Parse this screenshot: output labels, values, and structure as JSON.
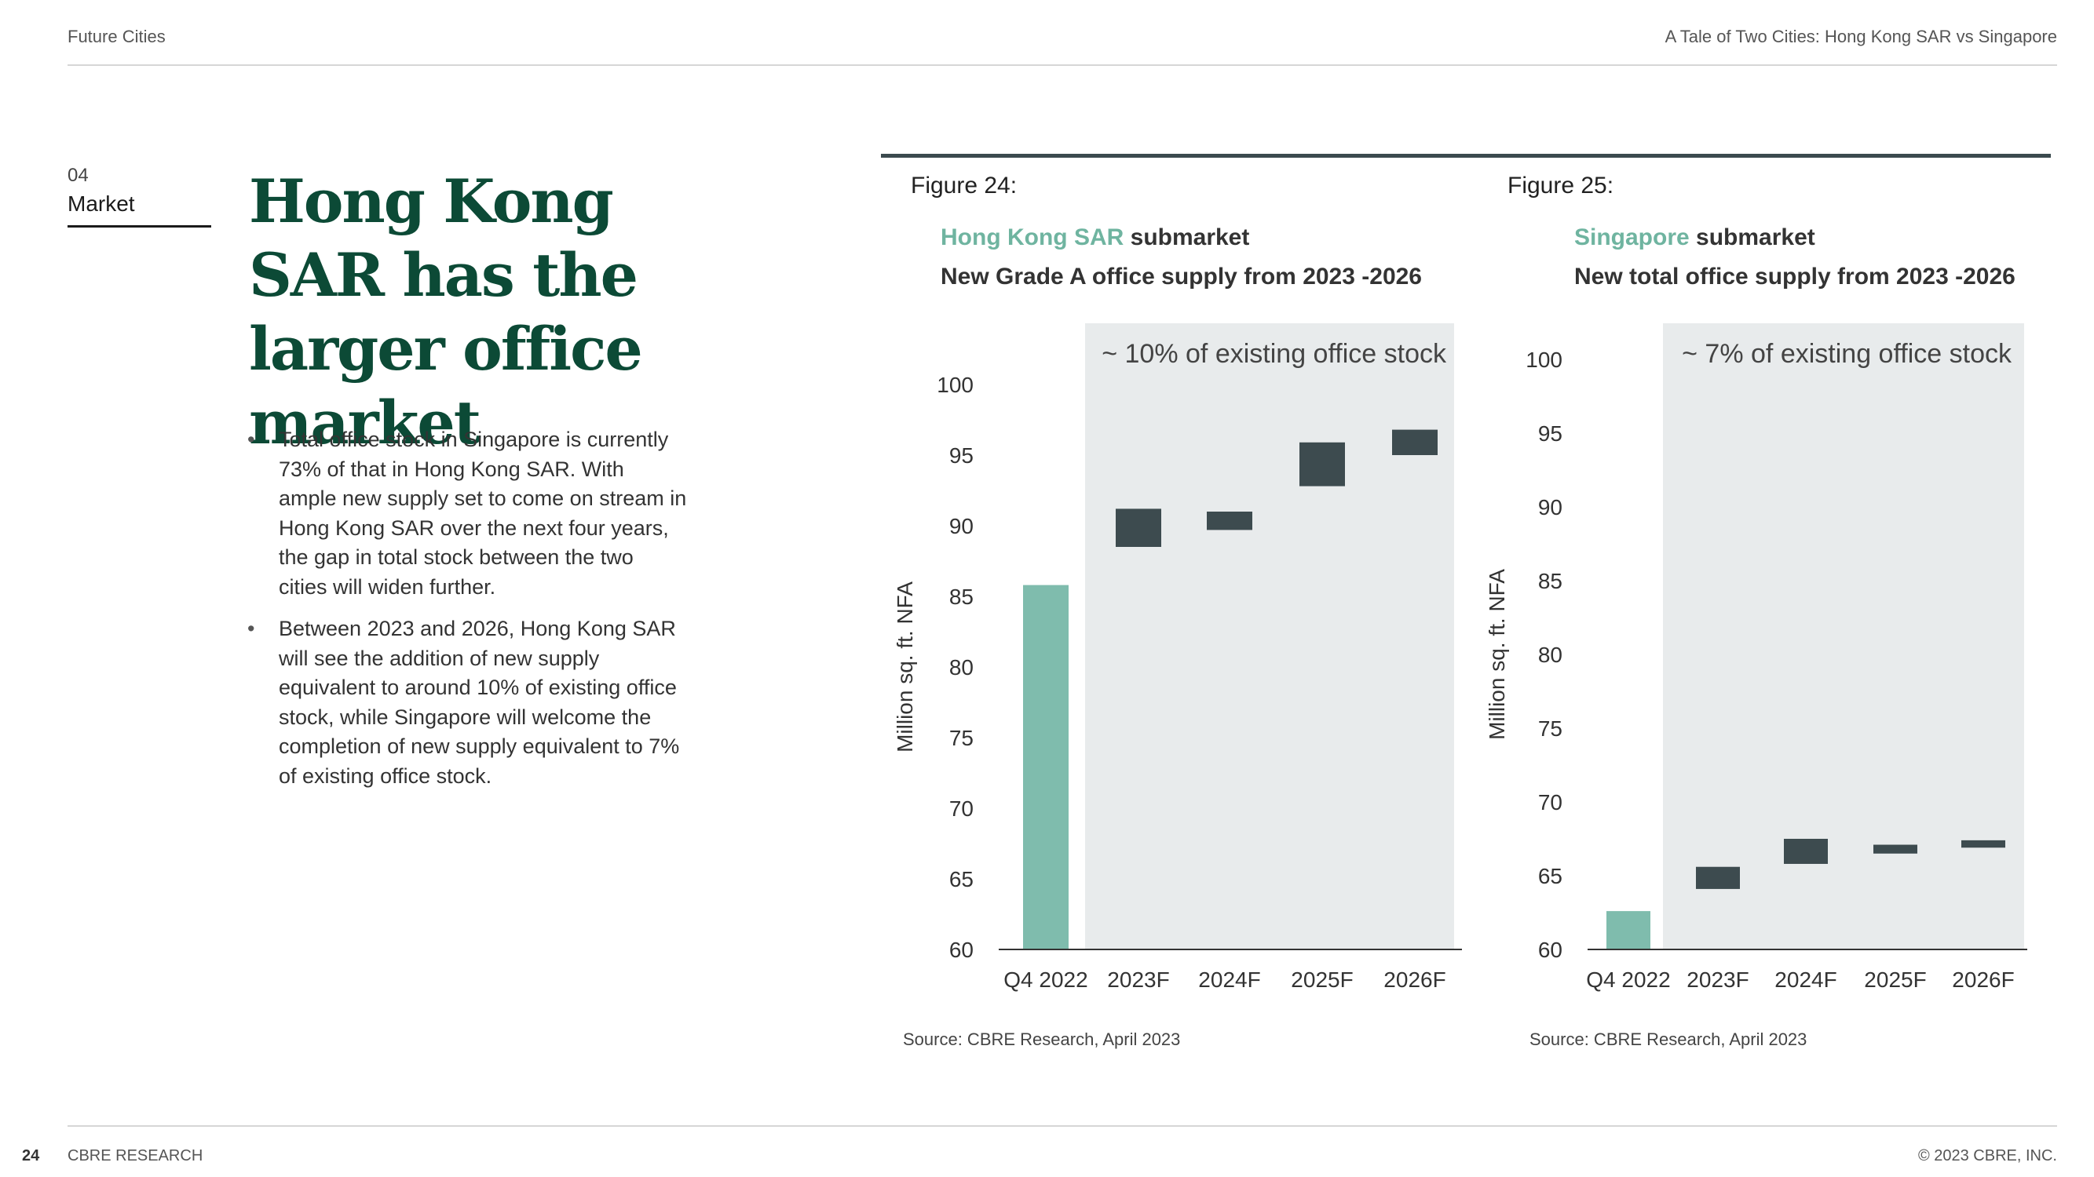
{
  "header": {
    "left": "Future Cities",
    "right": "A Tale of Two Cities: Hong Kong SAR vs Singapore"
  },
  "section": {
    "number": "04",
    "name": "Market"
  },
  "headline": "Hong Kong SAR has the larger office market",
  "bullets": [
    "Total office stock in Singapore is currently 73% of that in Hong Kong SAR. With ample new supply set to come on stream in Hong Kong SAR over the next four years, the gap in total stock between the two cities will widen further.",
    "Between 2023 and 2026, Hong Kong SAR will see the addition of new supply equivalent to around 10% of existing office stock, while Singapore will welcome the completion of new supply equivalent to 7% of existing office stock."
  ],
  "figures": [
    {
      "label": "Figure 24:",
      "subtitle_accent": "Hong Kong SAR",
      "subtitle_rest": " submarket",
      "subtitle2": "New Grade A office supply from 2023 -2026",
      "source": "Source: CBRE Research, April 2023"
    },
    {
      "label": "Figure 25:",
      "subtitle_accent": "Singapore",
      "subtitle_rest": " submarket",
      "subtitle2": "New total office supply from 2023 -2026",
      "source": "Source: CBRE Research, April 2023"
    }
  ],
  "chart_data": [
    {
      "type": "bar",
      "subtype": "waterfall",
      "categories": [
        "Q4 2022",
        "2023F",
        "2024F",
        "2025F",
        "2026F"
      ],
      "base": {
        "category": "Q4 2022",
        "value": 85.8
      },
      "increments": [
        {
          "category": "2023F",
          "from": 88.5,
          "to": 91.2
        },
        {
          "category": "2024F",
          "from": 89.7,
          "to": 91.0
        },
        {
          "category": "2025F",
          "from": 92.8,
          "to": 95.9
        },
        {
          "category": "2026F",
          "from": 95.0,
          "to": 96.8
        }
      ],
      "yticks": [
        60,
        65,
        70,
        75,
        80,
        85,
        90,
        95,
        100
      ],
      "ylim": [
        60,
        100
      ],
      "ylabel": "Million sq. ft. NFA",
      "annotation": "~ 10% of existing office stock",
      "colors": {
        "base": "#7fbcad",
        "increment": "#3d4b4f",
        "shade": "#e8ebec"
      }
    },
    {
      "type": "bar",
      "subtype": "waterfall",
      "categories": [
        "Q4 2022",
        "2023F",
        "2024F",
        "2025F",
        "2026F"
      ],
      "base": {
        "category": "Q4 2022",
        "value": 62.6
      },
      "increments": [
        {
          "category": "2023F",
          "from": 64.1,
          "to": 65.6
        },
        {
          "category": "2024F",
          "from": 65.8,
          "to": 67.5
        },
        {
          "category": "2025F",
          "from": 66.5,
          "to": 67.1
        },
        {
          "category": "2026F",
          "from": 66.9,
          "to": 67.4
        }
      ],
      "yticks": [
        60,
        65,
        70,
        75,
        80,
        85,
        90,
        95,
        100
      ],
      "ylim": [
        60,
        100
      ],
      "ylabel": "Million sq. ft. NFA",
      "annotation": "~ 7% of existing office stock",
      "colors": {
        "base": "#7fbcad",
        "increment": "#3d4b4f",
        "shade": "#e8ebec"
      }
    }
  ],
  "footer": {
    "page": "24",
    "brand": "CBRE RESEARCH",
    "copyright": "© 2023 CBRE, INC."
  }
}
